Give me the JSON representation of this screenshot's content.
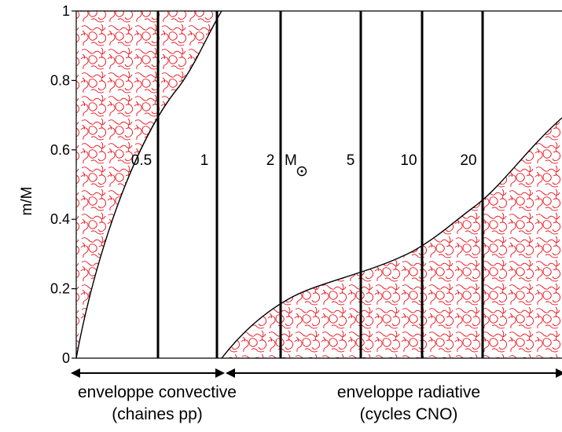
{
  "axis": {
    "ylabel": "m/M",
    "ylim": [
      0,
      1
    ],
    "yticks": [
      {
        "value": 0,
        "label": "0"
      },
      {
        "value": 0.2,
        "label": "0.2"
      },
      {
        "value": 0.4,
        "label": "0.4"
      },
      {
        "value": 0.6,
        "label": "0.6"
      },
      {
        "value": 0.8,
        "label": "0.8"
      },
      {
        "value": 1,
        "label": "1"
      }
    ]
  },
  "stellar_masses": [
    {
      "label": "0.5",
      "solar": false
    },
    {
      "label": "1",
      "solar": false
    },
    {
      "label": "2",
      "solar": true,
      "symbol": "M"
    },
    {
      "label": "5",
      "solar": false
    },
    {
      "label": "10",
      "solar": false
    },
    {
      "label": "20",
      "solar": false
    }
  ],
  "captions": {
    "left_line1": "enveloppe convective",
    "left_line2": "(chaines pp)",
    "right_line1": "enveloppe radiative",
    "right_line2": "(cycles CNO)"
  },
  "colors": {
    "convective_texture": "#e8141e",
    "line": "#000000"
  }
}
